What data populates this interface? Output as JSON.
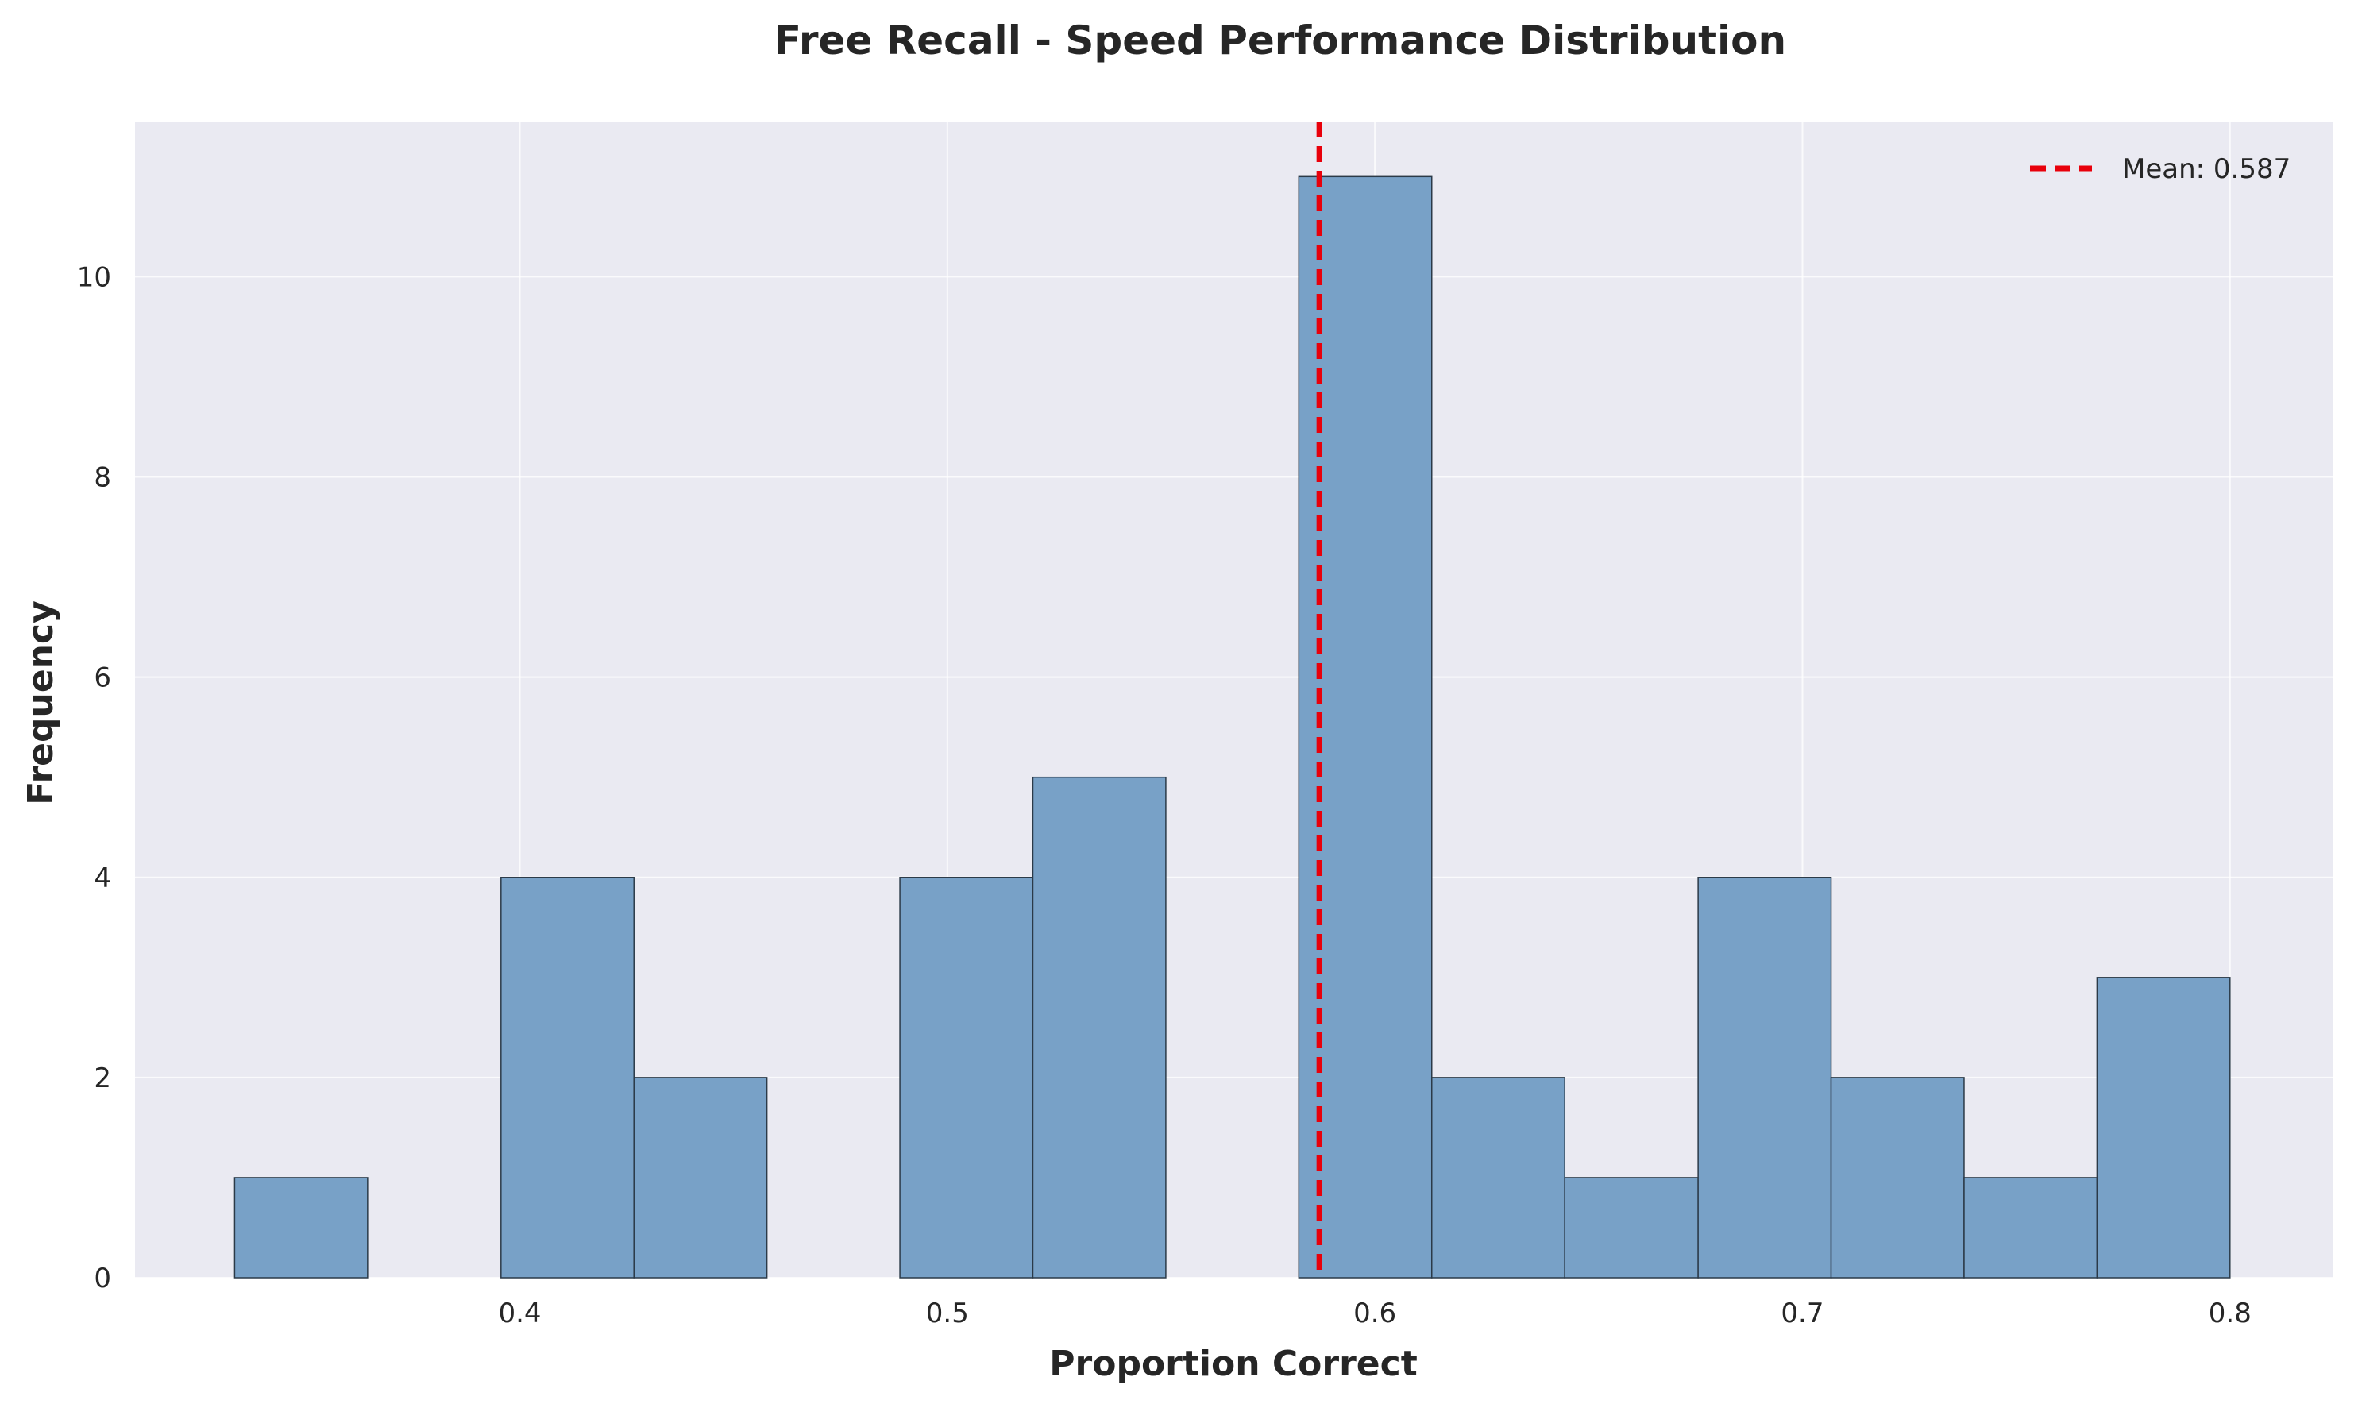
{
  "chart_data": {
    "type": "bar",
    "title": "Free Recall - Speed Performance Distribution",
    "xlabel": "Proportion Correct",
    "ylabel": "Frequency",
    "xlim": [
      0.31,
      0.824
    ],
    "ylim": [
      0,
      11.55
    ],
    "xticks": [
      0.4,
      0.5,
      0.6,
      0.7,
      0.8
    ],
    "xtick_labels": [
      "0.4",
      "0.5",
      "0.6",
      "0.7",
      "0.8"
    ],
    "yticks": [
      0,
      2,
      4,
      6,
      8,
      10
    ],
    "ytick_labels": [
      "0",
      "2",
      "4",
      "6",
      "8",
      "10"
    ],
    "grid": true,
    "bins": [
      {
        "x0": 0.3333,
        "x1": 0.3644,
        "count": 1
      },
      {
        "x0": 0.3644,
        "x1": 0.3956,
        "count": 0
      },
      {
        "x0": 0.3956,
        "x1": 0.4267,
        "count": 4
      },
      {
        "x0": 0.4267,
        "x1": 0.4578,
        "count": 2
      },
      {
        "x0": 0.4578,
        "x1": 0.4889,
        "count": 0
      },
      {
        "x0": 0.4889,
        "x1": 0.52,
        "count": 4
      },
      {
        "x0": 0.52,
        "x1": 0.5511,
        "count": 5
      },
      {
        "x0": 0.5511,
        "x1": 0.5822,
        "count": 0
      },
      {
        "x0": 0.5822,
        "x1": 0.6133,
        "count": 11
      },
      {
        "x0": 0.6133,
        "x1": 0.6444,
        "count": 2
      },
      {
        "x0": 0.6444,
        "x1": 0.6756,
        "count": 1
      },
      {
        "x0": 0.6756,
        "x1": 0.7067,
        "count": 4
      },
      {
        "x0": 0.7067,
        "x1": 0.7378,
        "count": 2
      },
      {
        "x0": 0.7378,
        "x1": 0.7689,
        "count": 1
      },
      {
        "x0": 0.7689,
        "x1": 0.8,
        "count": 3
      }
    ],
    "mean_line": {
      "value": 0.587,
      "label": "Mean: 0.587",
      "color": "#e8000b"
    },
    "legend_position": "top-right",
    "colors": {
      "bar_fill": "#78a1c7",
      "bar_edge": "#2b3a48",
      "plot_background": "#eaeaf2",
      "grid": "#ffffff"
    }
  }
}
